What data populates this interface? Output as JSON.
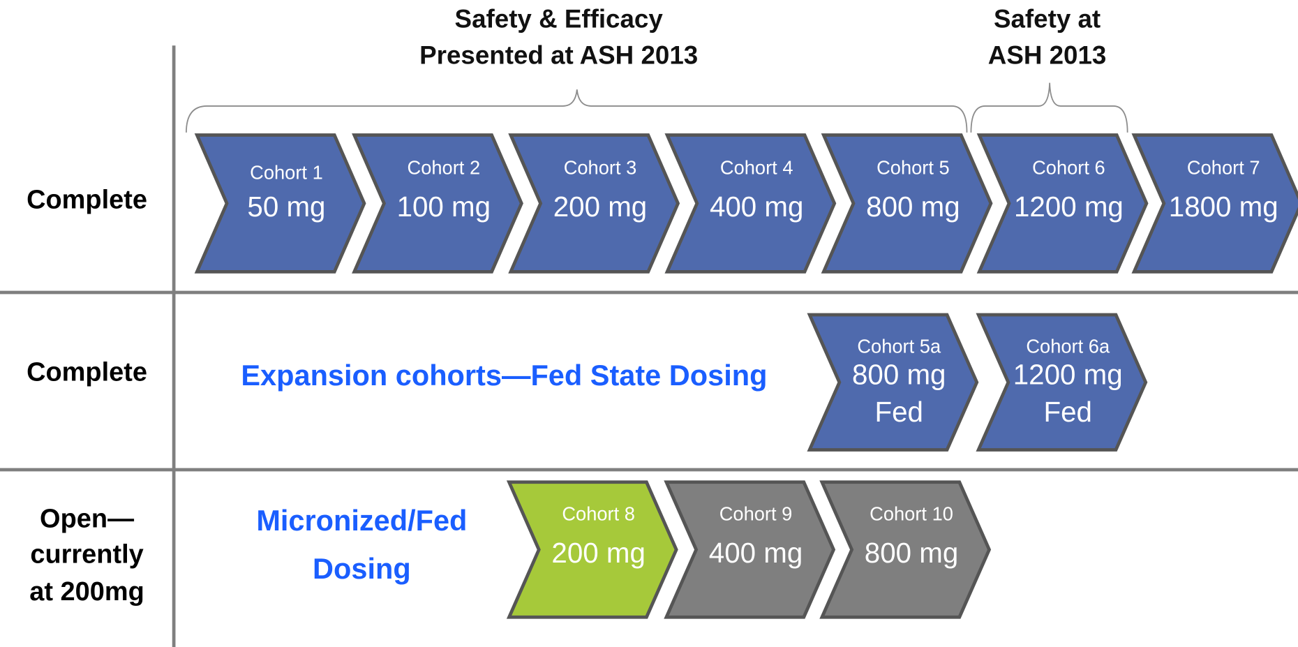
{
  "headers": [
    {
      "lines": [
        "Safety & Efficacy",
        "Presented at ASH 2013"
      ]
    },
    {
      "lines": [
        "Safety at",
        "ASH 2013"
      ]
    }
  ],
  "rows": [
    {
      "status": [
        "Complete"
      ],
      "cohorts": [
        {
          "name": "Cohort 1",
          "dose": "50 mg",
          "color": "#4f6aad"
        },
        {
          "name": "Cohort 2",
          "dose": "100 mg",
          "color": "#4f6aad"
        },
        {
          "name": "Cohort 3",
          "dose": "200 mg",
          "color": "#4f6aad"
        },
        {
          "name": "Cohort 4",
          "dose": "400 mg",
          "color": "#4f6aad"
        },
        {
          "name": "Cohort 5",
          "dose": "800 mg",
          "color": "#4f6aad"
        },
        {
          "name": "Cohort 6",
          "dose": "1200 mg",
          "color": "#4f6aad"
        },
        {
          "name": "Cohort 7",
          "dose": "1800 mg",
          "color": "#4f6aad"
        }
      ]
    },
    {
      "status": [
        "Complete"
      ],
      "subtitle": [
        "Expansion cohorts—Fed State Dosing"
      ],
      "cohorts": [
        {
          "name": "Cohort 5a",
          "dose": "800 mg",
          "note": "Fed",
          "color": "#4f6aad"
        },
        {
          "name": "Cohort 6a",
          "dose": "1200 mg",
          "note": "Fed",
          "color": "#4f6aad"
        }
      ]
    },
    {
      "status": [
        "Open—",
        "currently",
        "at 200mg"
      ],
      "subtitle": [
        "Micronized/Fed",
        "Dosing"
      ],
      "cohorts": [
        {
          "name": "Cohort 8",
          "dose": "200 mg",
          "color": "#a6c93a"
        },
        {
          "name": "Cohort 9",
          "dose": "400 mg",
          "color": "#7f7f7f"
        },
        {
          "name": "Cohort 10",
          "dose": "800 mg",
          "color": "#7f7f7f"
        }
      ]
    }
  ]
}
